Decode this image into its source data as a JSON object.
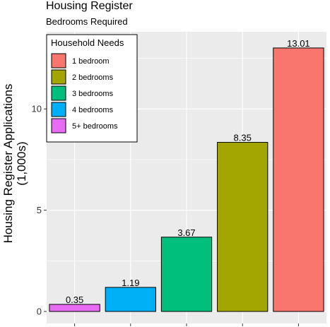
{
  "chart_data": {
    "type": "bar",
    "title": "Housing Register",
    "subtitle": "Bedrooms Required",
    "xlabel": "",
    "ylabel": "Housing Register Applications",
    "ylabel_line2": "(1,000s)",
    "categories": [
      "5+ bedrooms",
      "4 bedrooms",
      "3 bedrooms",
      "2 bedrooms",
      "1 bedroom"
    ],
    "values": [
      0.35,
      1.19,
      3.67,
      8.35,
      13.01
    ],
    "data_labels": [
      "0.35",
      "1.19",
      "3.67",
      "8.35",
      "13.01"
    ],
    "colors": [
      "#E76BF3",
      "#00B0F6",
      "#00BF7D",
      "#A3A500",
      "#F8766D"
    ],
    "ylim": [
      0,
      13.6
    ],
    "yticks": [
      0,
      5,
      10
    ],
    "ytick_labels": [
      "0",
      "5",
      "10"
    ],
    "x_tick_labels_shown": false,
    "grid": true,
    "legend": {
      "title": "Household Needs",
      "placement": "top-left",
      "items": [
        {
          "label": "1 bedroom",
          "color": "#F8766D"
        },
        {
          "label": "2 bedrooms",
          "color": "#A3A500"
        },
        {
          "label": "3 bedrooms",
          "color": "#00BF7D"
        },
        {
          "label": "4 bedrooms",
          "color": "#00B0F6"
        },
        {
          "label": "5+ bedrooms",
          "color": "#E76BF3"
        }
      ]
    },
    "panel_background": "#EBEBEB",
    "grid_color": "#FFFFFF"
  }
}
